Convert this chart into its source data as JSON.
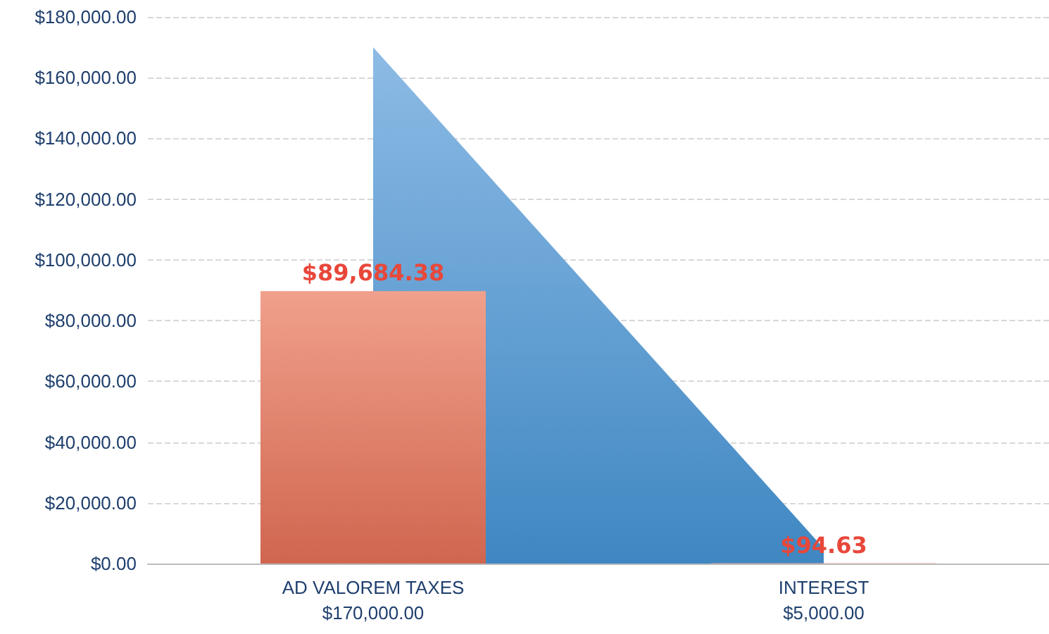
{
  "chart_data": {
    "type": "bar",
    "categories": [
      "AD VALOREM TAXES\n$170,000.00",
      "INTEREST\n$5,000.00"
    ],
    "series": [
      {
        "type": "area",
        "color": "#3f87c2",
        "values": [
          170000,
          5000
        ]
      },
      {
        "type": "bar",
        "color": "#d0664f",
        "values": [
          89684.38,
          94.63
        ],
        "value_labels": [
          "$89,684.38",
          "$94.63"
        ]
      }
    ],
    "ylim": [
      0,
      180000
    ],
    "yticks": [
      {
        "value": 0,
        "label": "$0.00"
      },
      {
        "value": 20000,
        "label": "$20,000.00"
      },
      {
        "value": 40000,
        "label": "$40,000.00"
      },
      {
        "value": 60000,
        "label": "$60,000.00"
      },
      {
        "value": 80000,
        "label": "$80,000.00"
      },
      {
        "value": 100000,
        "label": "$100,000.00"
      },
      {
        "value": 120000,
        "label": "$120,000.00"
      },
      {
        "value": 140000,
        "label": "$140,000.00"
      },
      {
        "value": 160000,
        "label": "$160,000.00"
      },
      {
        "value": 180000,
        "label": "$180,000.00"
      }
    ],
    "grid": "y"
  }
}
